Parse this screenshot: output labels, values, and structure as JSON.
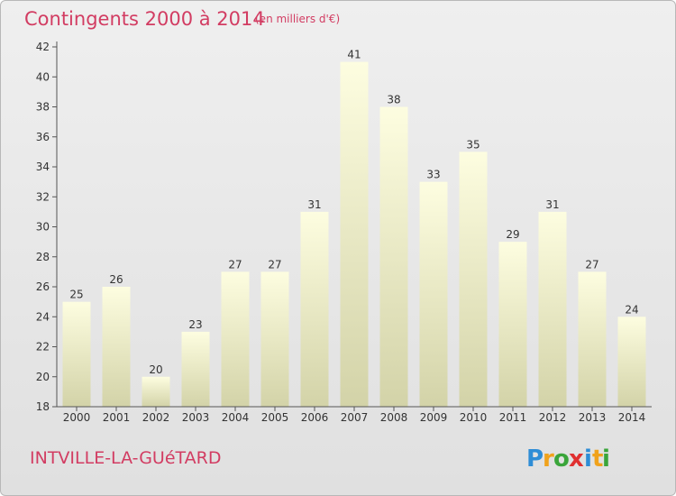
{
  "chart_data": {
    "type": "bar",
    "title": "Contingents 2000 à 2014",
    "subtitle": "(en milliers d'€)",
    "categories": [
      "2000",
      "2001",
      "2002",
      "2003",
      "2004",
      "2005",
      "2006",
      "2007",
      "2008",
      "2009",
      "2010",
      "2011",
      "2012",
      "2013",
      "2014"
    ],
    "values": [
      25,
      26,
      20,
      23,
      27,
      27,
      31,
      41,
      38,
      33,
      35,
      29,
      31,
      27,
      24
    ],
    "ylim": [
      18,
      42
    ],
    "yticks": [
      18,
      20,
      22,
      24,
      26,
      28,
      30,
      32,
      34,
      36,
      38,
      40,
      42
    ],
    "grid": false,
    "colors": {
      "title": "#d23c62",
      "bar_top": "#fdfde0",
      "bar_bottom": "#d3d3a8"
    }
  },
  "place": "INTVILLE-LA-GUéTARD",
  "logo": {
    "letters": [
      "P",
      "r",
      "o",
      "x",
      "i",
      "t",
      "i"
    ],
    "colors": [
      "#2e8dd6",
      "#f0a21b",
      "#3aa53a",
      "#e03030",
      "#2e8dd6",
      "#f0a21b",
      "#3aa53a"
    ]
  }
}
